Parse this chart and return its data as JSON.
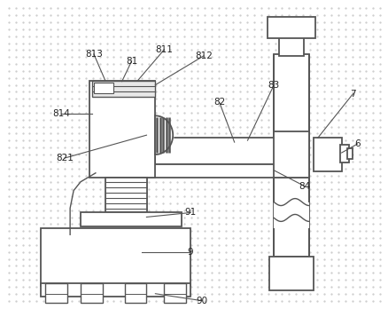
{
  "bg_color": "#ffffff",
  "line_color": "#555555",
  "figsize": [
    4.39,
    3.48
  ],
  "dpi": 100,
  "dot_color": "#cccccc"
}
